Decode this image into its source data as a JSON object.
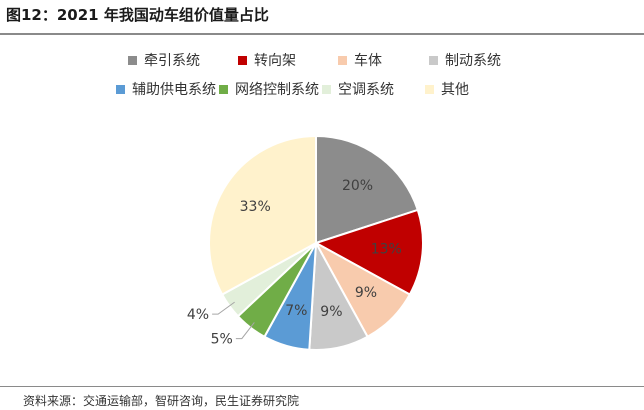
{
  "figure": {
    "title": "图12：2021 年我国动车组价值量占比",
    "source": "资料来源：交通运输部，智研咨询，民生证券研究院"
  },
  "chart_data": {
    "type": "pie",
    "title": "",
    "legend_position": "top",
    "slices": [
      {
        "label": "牵引系统",
        "value": 20,
        "value_label": "20%",
        "color": "#8c8c8c"
      },
      {
        "label": "转向架",
        "value": 13,
        "value_label": "13%",
        "color": "#c00000"
      },
      {
        "label": "车体",
        "value": 9,
        "value_label": "9%",
        "color": "#f8cbad"
      },
      {
        "label": "制动系统",
        "value": 9,
        "value_label": "9%",
        "color": "#c9c9c9"
      },
      {
        "label": "辅助供电系统",
        "value": 7,
        "value_label": "7%",
        "color": "#5b9bd5"
      },
      {
        "label": "网络控制系统",
        "value": 5,
        "value_label": "5%",
        "color": "#70ad47"
      },
      {
        "label": "空调系统",
        "value": 4,
        "value_label": "4%",
        "color": "#e2efda"
      },
      {
        "label": "其他",
        "value": 33,
        "value_label": "33%",
        "color": "#fff2cc"
      }
    ]
  }
}
